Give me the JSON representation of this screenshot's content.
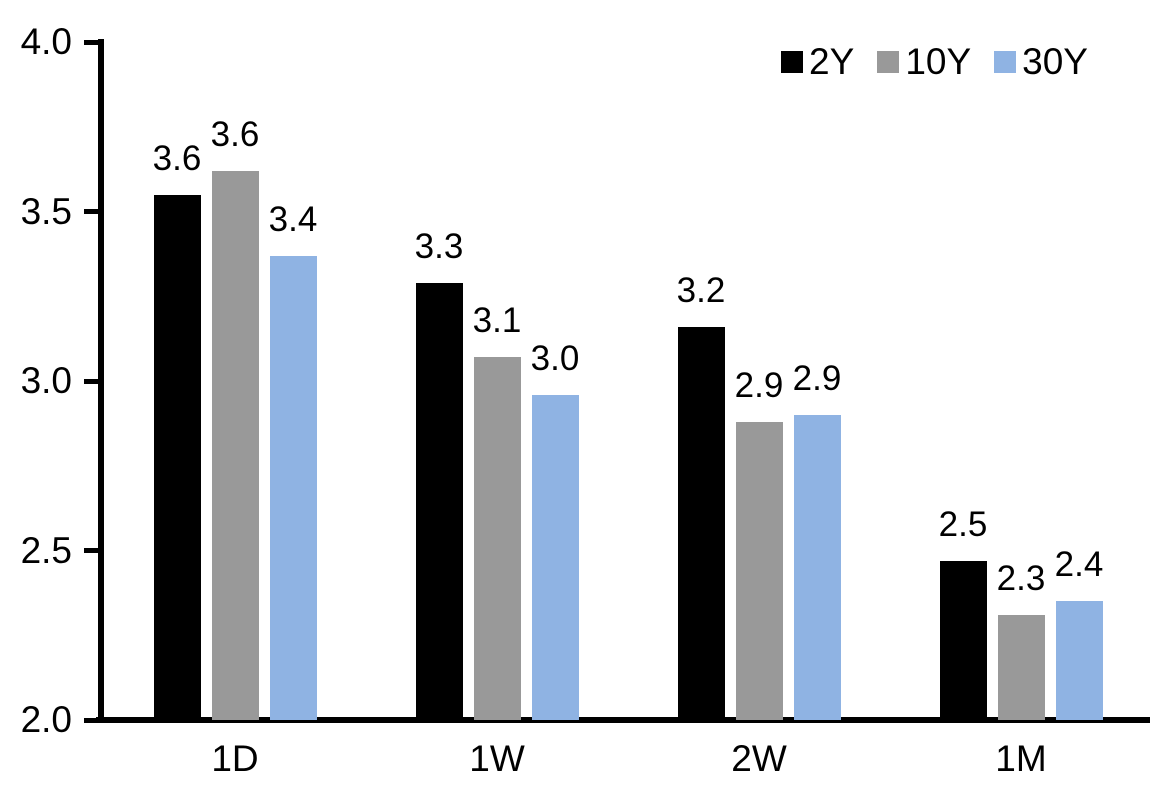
{
  "chart_data": {
    "type": "bar",
    "title": "",
    "xlabel": "",
    "ylabel": "",
    "categories": [
      "1D",
      "1W",
      "2W",
      "1M"
    ],
    "series": [
      {
        "name": "2Y",
        "color": "#000000",
        "values": [
          3.55,
          3.29,
          3.16,
          2.47
        ],
        "labels": [
          "3.6",
          "3.3",
          "3.2",
          "2.5"
        ]
      },
      {
        "name": "10Y",
        "color": "#999999",
        "values": [
          3.62,
          3.07,
          2.88,
          2.31
        ],
        "labels": [
          "3.6",
          "3.1",
          "2.9",
          "2.3"
        ]
      },
      {
        "name": "30Y",
        "color": "#8FB3E3",
        "values": [
          3.37,
          2.96,
          2.9,
          2.35
        ],
        "labels": [
          "3.4",
          "3.0",
          "2.9",
          "2.4"
        ]
      }
    ],
    "ylim": [
      2.0,
      4.0
    ],
    "ytick_step": 0.5,
    "yticks": [
      "4.0",
      "3.5",
      "3.0",
      "2.5",
      "2.0"
    ],
    "grid": false,
    "legend_position": "top-right",
    "axis_color": "#000000"
  }
}
